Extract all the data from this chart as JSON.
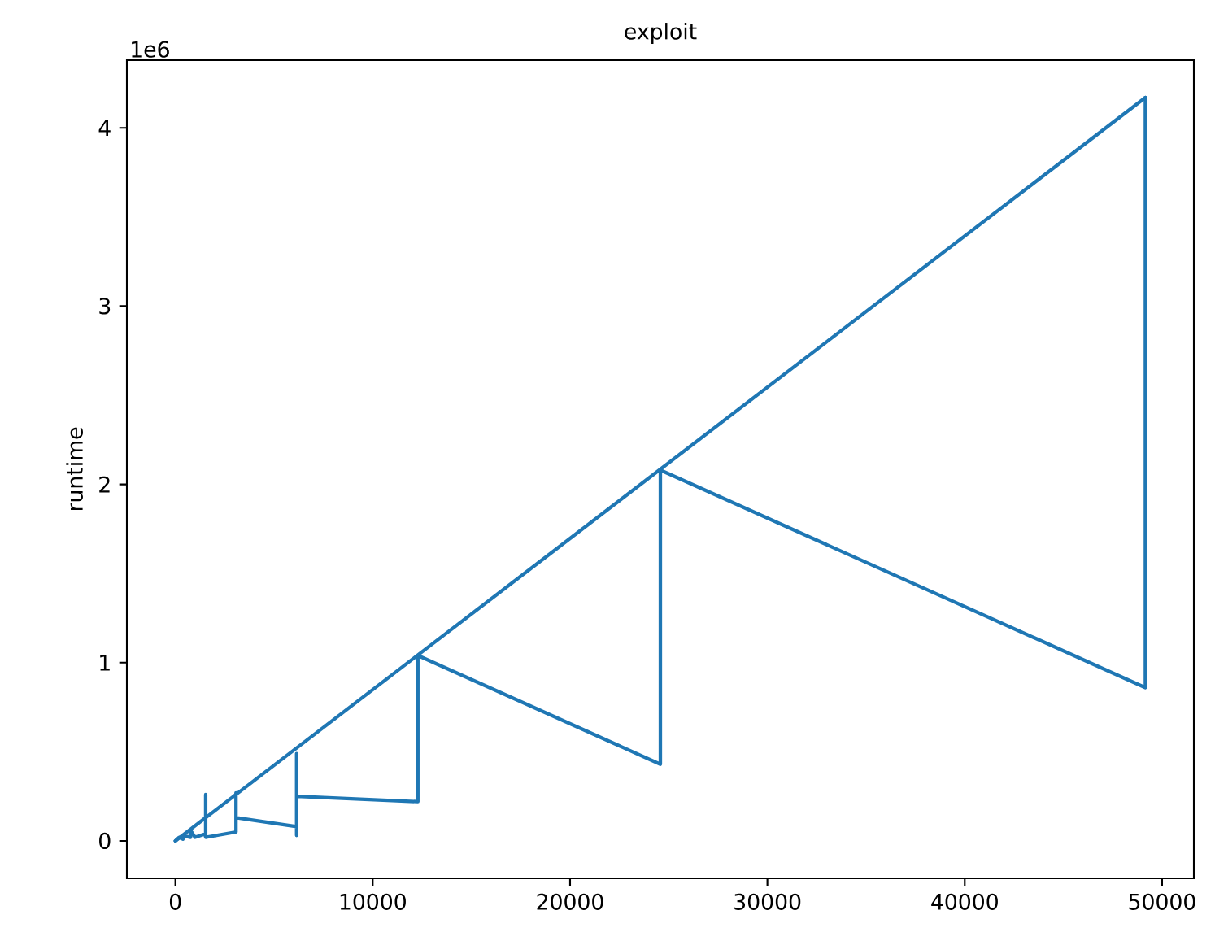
{
  "chart_data": {
    "type": "line",
    "title": "exploit",
    "ylabel": "runtime",
    "annotations": [
      "1e6"
    ],
    "x": [
      0,
      192,
      384,
      384,
      768,
      768,
      1000,
      1536,
      1536,
      1536,
      3072,
      3072,
      3072,
      6144,
      6144,
      6144,
      6144,
      12288,
      12288,
      24576,
      24576,
      49152,
      49152
    ],
    "series": [
      {
        "color": "#1f77b4",
        "values": [
          0,
          0.02,
          0.01,
          0.03,
          0.02,
          0.06,
          0.02,
          0.04,
          0.26,
          0.02,
          0.05,
          0.27,
          0.13,
          0.08,
          0.03,
          0.49,
          0.25,
          0.22,
          1.04,
          0.43,
          2.08,
          0.86,
          4.17
        ]
      },
      {
        "color": "#1f77b4",
        "x": [
          0,
          49152
        ],
        "values": [
          0,
          4.17
        ]
      }
    ],
    "xlim": [
      -2458,
      51610
    ],
    "ylim": [
      -0.21,
      4.38
    ],
    "xticks": [
      0,
      10000,
      20000,
      30000,
      40000,
      50000
    ],
    "yticks": [
      0,
      1,
      2,
      3,
      4
    ],
    "grid": false,
    "marker": "none",
    "line_style": "solid"
  }
}
